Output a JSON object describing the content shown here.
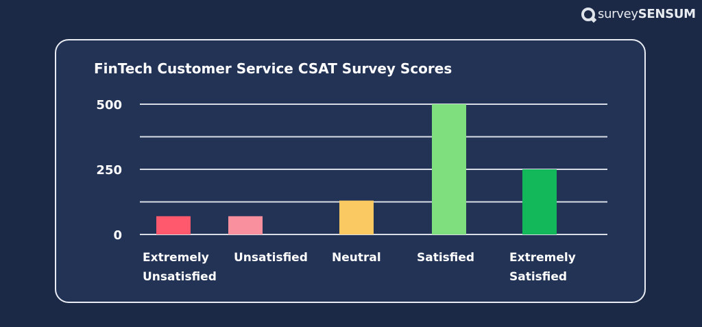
{
  "brand": {
    "prefix": "survey",
    "suffix": "SENSUM"
  },
  "chart_data": {
    "type": "bar",
    "title": "FinTech Customer Service CSAT Survey Scores",
    "categories": [
      "Extremely Unsatisfied",
      "Unsatisfied",
      "Neutral",
      "Satisfied",
      "Extremely Satisfied"
    ],
    "category_labels": [
      "Extremely\nUnsatisfied",
      "Unsatisfied",
      "Neutral",
      "Satisfied",
      "Extremely\nSatisfied"
    ],
    "values": [
      70,
      70,
      130,
      500,
      250
    ],
    "colors": [
      "#fe596c",
      "#f9909e",
      "#fbc962",
      "#7fdf7e",
      "#12b85a"
    ],
    "ylim": [
      0,
      500
    ],
    "yticks": [
      0,
      250,
      500
    ],
    "ytick_labels": [
      "0",
      "250",
      "500"
    ],
    "gridlines": [
      0,
      125,
      250,
      375,
      500
    ],
    "grid": true,
    "xlabel": "",
    "ylabel": ""
  }
}
